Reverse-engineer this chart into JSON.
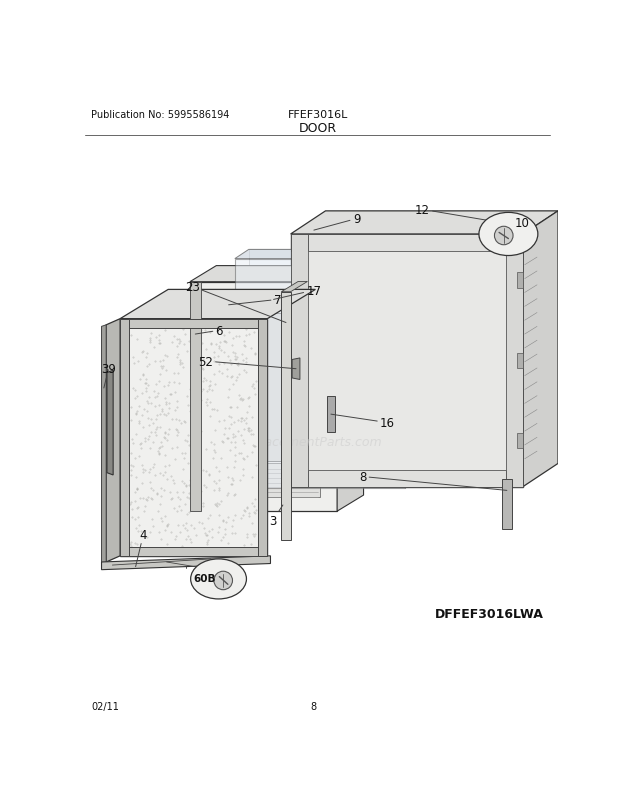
{
  "title_left": "Publication No: 5995586194",
  "title_center": "FFEF3016L",
  "title_section": "DOOR",
  "footer_left": "02/11",
  "footer_center": "8",
  "footer_right": "DFFEF3016LWA",
  "bg_color": "#ffffff",
  "line_color": "#333333",
  "watermark": "eReplacementParts.com"
}
